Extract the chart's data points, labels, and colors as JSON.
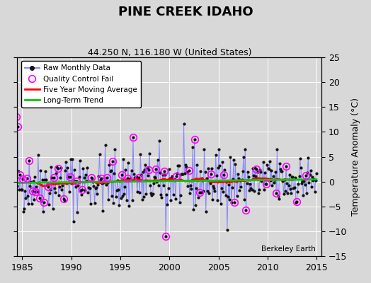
{
  "title": "PINE CREEK IDAHO",
  "subtitle": "44.250 N, 116.180 W (United States)",
  "ylabel": "Temperature Anomaly (°C)",
  "watermark": "Berkeley Earth",
  "xlim": [
    1984.5,
    2015.5
  ],
  "ylim": [
    -15,
    25
  ],
  "yticks": [
    -15,
    -10,
    -5,
    0,
    5,
    10,
    15,
    20,
    25
  ],
  "xticks": [
    1985,
    1990,
    1995,
    2000,
    2005,
    2010,
    2015
  ],
  "bg_color": "#d8d8d8",
  "raw_line_color": "#8888ff",
  "raw_marker_color": "#111111",
  "qc_color": "#ff00ff",
  "moving_avg_color": "#ff0000",
  "trend_color": "#00cc00",
  "seed": 42,
  "figwidth": 5.24,
  "figheight": 4.0,
  "dpi": 100
}
